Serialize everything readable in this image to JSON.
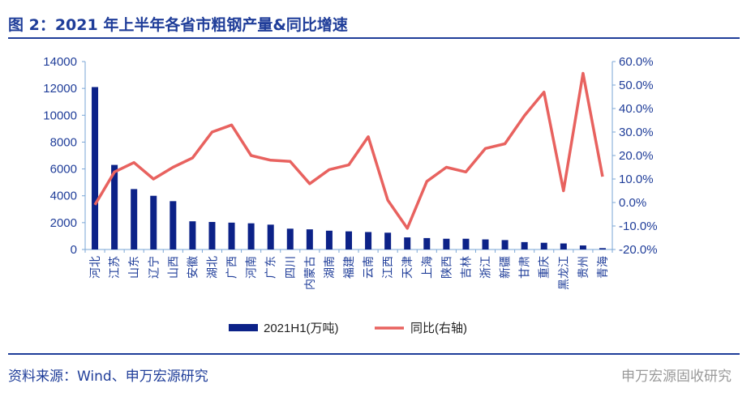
{
  "title": "图 2：2021 年上半年各省市粗钢产量&同比增速",
  "source": "资料来源：Wind、申万宏源研究",
  "watermark": "申万宏源固收研究",
  "colors": {
    "bar": "#0c2288",
    "line": "#e8625f",
    "axis": "#7aa6d6",
    "text": "#1f3d99"
  },
  "chart_data": {
    "type": "bar+line",
    "categories": [
      "河北",
      "江苏",
      "山东",
      "辽宁",
      "山西",
      "安徽",
      "湖北",
      "广西",
      "河南",
      "广东",
      "四川",
      "内蒙古",
      "湖南",
      "福建",
      "云南",
      "江西",
      "天津",
      "上海",
      "陕西",
      "吉林",
      "浙江",
      "新疆",
      "甘肃",
      "重庆",
      "黑龙江",
      "贵州",
      "青海"
    ],
    "series": [
      {
        "name": "2021H1(万吨)",
        "type": "bar",
        "axis": "left",
        "values": [
          12100,
          6300,
          4500,
          4000,
          3600,
          2100,
          2050,
          2000,
          1950,
          1850,
          1550,
          1500,
          1400,
          1350,
          1300,
          1250,
          900,
          850,
          800,
          800,
          750,
          700,
          550,
          500,
          450,
          300,
          100
        ]
      },
      {
        "name": "同比(右轴)",
        "type": "line",
        "axis": "right",
        "values": [
          -1,
          13,
          17,
          10,
          15,
          19,
          30,
          33,
          20,
          18,
          17.5,
          8,
          14,
          16,
          28,
          1,
          -11,
          9,
          15,
          13,
          23,
          25,
          37,
          47,
          5,
          55,
          11
        ]
      }
    ],
    "left_axis": {
      "ylim": [
        0,
        14000
      ],
      "ticks": [
        "0",
        "2000",
        "4000",
        "6000",
        "8000",
        "10000",
        "12000",
        "14000"
      ]
    },
    "right_axis": {
      "ylim": [
        -20,
        60
      ],
      "ticks": [
        "-20.0%",
        "-10.0%",
        "0.0%",
        "10.0%",
        "20.0%",
        "30.0%",
        "40.0%",
        "50.0%",
        "60.0%"
      ]
    },
    "legend_position": "bottom",
    "grid": false
  }
}
